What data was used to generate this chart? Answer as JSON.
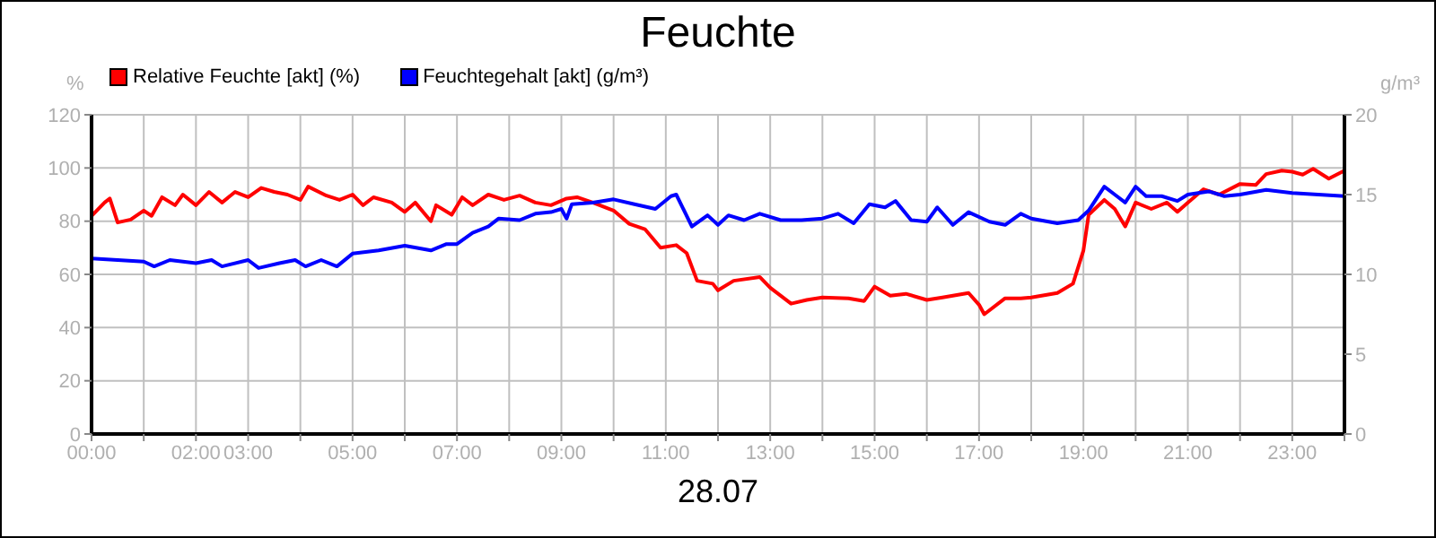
{
  "chart_data": {
    "type": "line",
    "title": "Feuchte",
    "xlabel": "28.07",
    "ylabel": "%",
    "y2label": "g/m³",
    "legend": "top left",
    "grid": true,
    "marker": "none",
    "line_style": "solid",
    "xlim": [
      0,
      24
    ],
    "xticks": [
      {
        "value": 0,
        "label": "00:00"
      },
      {
        "value": 1,
        "label": null
      },
      {
        "value": 2,
        "label": "02:00"
      },
      {
        "value": 3,
        "label": "03:00"
      },
      {
        "value": 4,
        "label": null
      },
      {
        "value": 5,
        "label": "05:00"
      },
      {
        "value": 6,
        "label": null
      },
      {
        "value": 7,
        "label": "07:00"
      },
      {
        "value": 8,
        "label": null
      },
      {
        "value": 9,
        "label": "09:00"
      },
      {
        "value": 10,
        "label": null
      },
      {
        "value": 11,
        "label": "11:00"
      },
      {
        "value": 12,
        "label": null
      },
      {
        "value": 13,
        "label": "13:00"
      },
      {
        "value": 14,
        "label": null
      },
      {
        "value": 15,
        "label": "15:00"
      },
      {
        "value": 16,
        "label": null
      },
      {
        "value": 17,
        "label": "17:00"
      },
      {
        "value": 18,
        "label": null
      },
      {
        "value": 19,
        "label": "19:00"
      },
      {
        "value": 20,
        "label": null
      },
      {
        "value": 21,
        "label": "21:00"
      },
      {
        "value": 22,
        "label": null
      },
      {
        "value": 23,
        "label": "23:00"
      },
      {
        "value": 24,
        "label": null
      }
    ],
    "ylim": [
      0,
      120
    ],
    "yticks": [
      0,
      20,
      40,
      60,
      80,
      100,
      120
    ],
    "y2lim": [
      0,
      20
    ],
    "y2ticks": [
      0,
      5,
      10,
      15,
      20
    ],
    "series": [
      {
        "name": "Relative Feuchte [akt] (%)",
        "color": "#ff0000",
        "x": [
          0,
          0.25,
          0.35,
          0.5,
          0.75,
          1.0,
          1.15,
          1.35,
          1.6,
          1.75,
          2.0,
          2.25,
          2.5,
          2.75,
          3.0,
          3.25,
          3.5,
          3.75,
          4.0,
          4.15,
          4.5,
          4.75,
          5.0,
          5.2,
          5.4,
          5.75,
          6.0,
          6.2,
          6.5,
          6.6,
          6.9,
          7.1,
          7.3,
          7.6,
          7.9,
          8.2,
          8.5,
          8.8,
          9.1,
          9.3,
          9.6,
          10.0,
          10.3,
          10.6,
          10.9,
          11.2,
          11.4,
          11.6,
          11.9,
          12.0,
          12.3,
          12.8,
          13.0,
          13.4,
          13.7,
          14.0,
          14.5,
          14.8,
          15.0,
          15.3,
          15.6,
          16.0,
          16.3,
          16.8,
          17.0,
          17.1,
          17.5,
          17.8,
          18.0,
          18.5,
          18.8,
          19.0,
          19.1,
          19.4,
          19.6,
          19.8,
          20.0,
          20.3,
          20.6,
          20.8,
          21.0,
          21.3,
          21.6,
          22.0,
          22.3,
          22.5,
          22.8,
          23.0,
          23.2,
          23.4,
          23.7,
          24.0
        ],
        "values": [
          82,
          87,
          88.5,
          79.5,
          80.6,
          84,
          82,
          89,
          86,
          90,
          86,
          91,
          87,
          91,
          89,
          92.5,
          91,
          90,
          88,
          93,
          89.6,
          88,
          90,
          86,
          89,
          87,
          83.5,
          87,
          80,
          86,
          82.4,
          89,
          86,
          90,
          88,
          89.6,
          87,
          86,
          88.5,
          89,
          87,
          84,
          79,
          77,
          70,
          71,
          68,
          57.6,
          56.5,
          54,
          57.6,
          59,
          55,
          49,
          50.4,
          51.3,
          51,
          50,
          55.4,
          52,
          52.7,
          50.4,
          51.3,
          53,
          48.6,
          45,
          51,
          51,
          51.3,
          53,
          56.5,
          69,
          82.4,
          88,
          84.6,
          78,
          87,
          84.6,
          87,
          83.5,
          87,
          92,
          90,
          94,
          93.6,
          97.7,
          99,
          98.6,
          97.5,
          99.7,
          96,
          99
        ]
      },
      {
        "name": "Feuchtegehalt [akt] (g/m³)",
        "color": "#0000ff",
        "axis": "y2",
        "x": [
          0,
          0.5,
          1.0,
          1.2,
          1.5,
          2.0,
          2.3,
          2.5,
          3.0,
          3.2,
          3.6,
          3.9,
          4.1,
          4.4,
          4.7,
          5.0,
          5.5,
          6.0,
          6.5,
          6.8,
          7.0,
          7.3,
          7.6,
          7.8,
          8.2,
          8.5,
          8.8,
          9.0,
          9.1,
          9.2,
          9.6,
          10.0,
          10.4,
          10.8,
          11.1,
          11.2,
          11.5,
          11.8,
          12.0,
          12.2,
          12.5,
          12.8,
          13.2,
          13.6,
          14.0,
          14.3,
          14.6,
          14.9,
          15.2,
          15.4,
          15.7,
          16.0,
          16.2,
          16.5,
          16.8,
          17.2,
          17.5,
          17.8,
          18.0,
          18.5,
          18.9,
          19.1,
          19.4,
          19.6,
          19.8,
          20.0,
          20.2,
          20.5,
          20.8,
          21.0,
          21.4,
          21.7,
          22.0,
          22.5,
          23.0,
          23.5,
          24.0
        ],
        "values": [
          11.0,
          10.9,
          10.8,
          10.5,
          10.9,
          10.7,
          10.9,
          10.5,
          10.9,
          10.4,
          10.7,
          10.9,
          10.5,
          10.9,
          10.5,
          11.3,
          11.5,
          11.8,
          11.5,
          11.9,
          11.9,
          12.6,
          13.0,
          13.5,
          13.4,
          13.8,
          13.9,
          14.1,
          13.5,
          14.4,
          14.5,
          14.7,
          14.4,
          14.1,
          14.9,
          15.0,
          13.0,
          13.7,
          13.1,
          13.7,
          13.4,
          13.8,
          13.4,
          13.4,
          13.5,
          13.8,
          13.2,
          14.4,
          14.2,
          14.6,
          13.4,
          13.3,
          14.2,
          13.1,
          13.9,
          13.3,
          13.1,
          13.8,
          13.5,
          13.2,
          13.4,
          14.0,
          15.5,
          15.0,
          14.5,
          15.5,
          14.9,
          14.9,
          14.6,
          15.0,
          15.2,
          14.9,
          15.0,
          15.3,
          15.1,
          15.0,
          14.9
        ]
      }
    ]
  }
}
